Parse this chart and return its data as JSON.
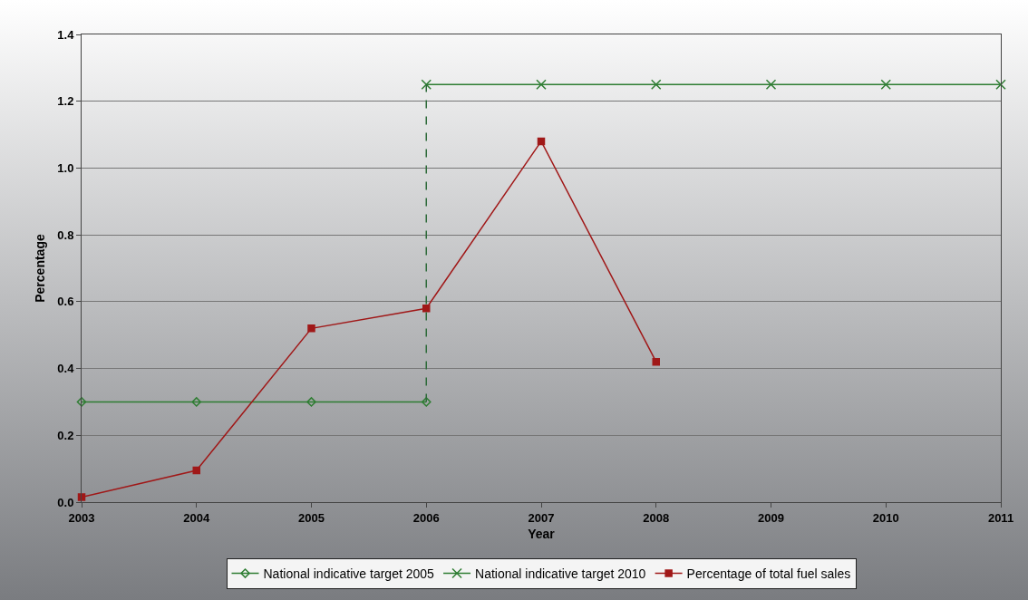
{
  "chart_data": {
    "type": "line",
    "xlabel": "Year",
    "ylabel": "Percentage",
    "x": [
      2003,
      2004,
      2005,
      2006,
      2007,
      2008,
      2009,
      2010,
      2011
    ],
    "xlim": [
      2003,
      2011
    ],
    "xticks": [
      2003,
      2004,
      2005,
      2006,
      2007,
      2008,
      2009,
      2010,
      2011
    ],
    "ylim": [
      0,
      1.4
    ],
    "yticks": [
      {
        "value": 0,
        "label": "0.0"
      },
      0.2,
      0.4,
      0.6,
      0.8,
      {
        "value": 1,
        "label": "1.0"
      },
      1.2,
      1.4
    ],
    "grid": "y",
    "legend": "bottom",
    "line_style": "solid",
    "series": [
      {
        "name": "National indicative target 2005",
        "color": "#2e7d32",
        "marker": "diamond",
        "values": [
          0.3,
          0.3,
          0.3,
          0.3,
          null,
          null,
          null,
          null,
          null
        ]
      },
      {
        "name": "National indicative target 2010",
        "color": "#2e7d32",
        "marker": "cross",
        "values": [
          null,
          null,
          null,
          1.25,
          1.25,
          1.25,
          1.25,
          1.25,
          1.25
        ]
      },
      {
        "name": "Percentage of total fuel sales",
        "color": "#a01818",
        "marker": "square",
        "values": [
          0.015,
          0.095,
          0.52,
          0.58,
          1.08,
          0.42,
          null,
          null,
          null
        ]
      },
      {
        "color": "#2e6b3a",
        "marker": "none",
        "line_style": "dashed",
        "x": [
          2006,
          2006
        ],
        "values": [
          0.3,
          1.25
        ]
      }
    ]
  }
}
